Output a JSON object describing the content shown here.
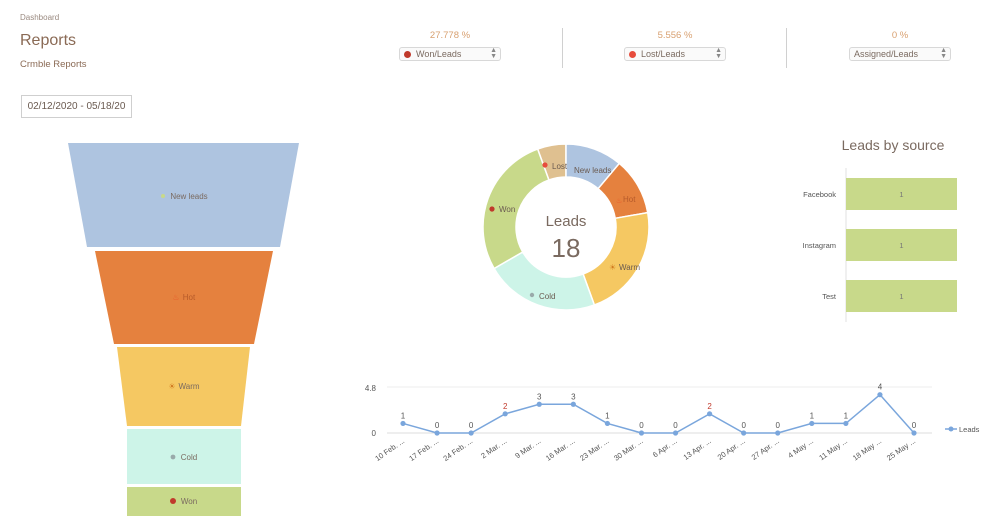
{
  "header": {
    "breadcrumb": "Dashboard",
    "title": "Reports",
    "subtitle": "Crmble Reports"
  },
  "kpis": [
    {
      "value": "27.778 %",
      "select": "Won/Leads",
      "dot_color": "#c0392b"
    },
    {
      "value": "5.556 %",
      "select": "Lost/Leads",
      "dot_color": "#e74c3c"
    },
    {
      "value": "0 %",
      "select": "Assigned/Leads",
      "dot_color": ""
    }
  ],
  "date_range": "02/12/2020 - 05/18/20",
  "funnel": {
    "stages": [
      {
        "label": "New leads",
        "color": "#aec4e0"
      },
      {
        "label": "Hot",
        "color": "#e5813e"
      },
      {
        "label": "Warm",
        "color": "#f5c862"
      },
      {
        "label": "Cold",
        "color": "#cdf4e8"
      },
      {
        "label": "Won",
        "color": "#c8d98a"
      }
    ]
  },
  "donut": {
    "center_label": "Leads",
    "center_value": "18",
    "segments": [
      {
        "label": "New leads",
        "value": 2,
        "color": "#aec4e0"
      },
      {
        "label": "Hot",
        "value": 2,
        "color": "#e5813e"
      },
      {
        "label": "Warm",
        "value": 4,
        "color": "#f5c862"
      },
      {
        "label": "Cold",
        "value": 4,
        "color": "#cdf4e8"
      },
      {
        "label": "Won",
        "value": 5,
        "color": "#c8d98a"
      },
      {
        "label": "Lost",
        "value": 1,
        "color": "#dfc090"
      }
    ]
  },
  "chart_data": [
    {
      "type": "bar",
      "title": "Leads by source",
      "orientation": "horizontal",
      "categories": [
        "Facebook",
        "Instagram",
        "Test"
      ],
      "values": [
        1,
        1,
        1
      ],
      "color": "#c8d98a",
      "xlim": [
        0,
        1
      ]
    },
    {
      "type": "line",
      "title": "",
      "categories": [
        "10 Feb. ...",
        "17 Feb. ...",
        "24 Feb. ...",
        "2 Mar. ...",
        "9 Mar. ...",
        "16 Mar. ...",
        "23 Mar. ...",
        "30 Mar. ...",
        "6 Apr. ...",
        "13 Apr. ...",
        "20 Apr. ...",
        "27 Apr. ...",
        "4 May ...",
        "11 May ...",
        "18 May ...",
        "25 May ..."
      ],
      "series": [
        {
          "name": "Leads",
          "values": [
            1,
            0,
            0,
            2,
            3,
            3,
            1,
            0,
            0,
            2,
            0,
            0,
            1,
            1,
            4,
            0
          ],
          "color": "#7aa6dc"
        }
      ],
      "ylim": [
        0,
        4.8
      ],
      "yticks": [
        "0",
        "4.8"
      ],
      "legend": "right"
    }
  ]
}
